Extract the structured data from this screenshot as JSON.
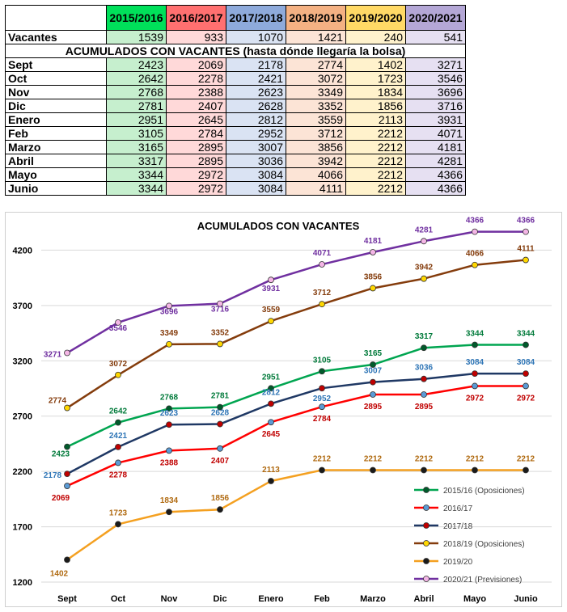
{
  "table": {
    "headers": [
      "2015/2016",
      "2016/2017",
      "2017/2018",
      "2018/2019",
      "2019/2020",
      "2020/2021"
    ],
    "header_colors": [
      "#00e05a",
      "#ff7070",
      "#8eaadb",
      "#f4b183",
      "#ffd966",
      "#b4a7d6"
    ],
    "body_colors": [
      "#c6efce",
      "#ffd9d9",
      "#dae3f3",
      "#fce4d6",
      "#fff2cc",
      "#e6e0f2"
    ],
    "vacantes_label": "Vacantes",
    "vacantes": [
      1539,
      933,
      1070,
      1421,
      240,
      541
    ],
    "subtitle": "ACUMULADOS CON VACANTES (hasta dónde llegaría la bolsa)",
    "rows": [
      {
        "label": "Sept",
        "values": [
          2423,
          2069,
          2178,
          2774,
          1402,
          3271
        ]
      },
      {
        "label": "Oct",
        "values": [
          2642,
          2278,
          2421,
          3072,
          1723,
          3546
        ]
      },
      {
        "label": "Nov",
        "values": [
          2768,
          2388,
          2623,
          3349,
          1834,
          3696
        ]
      },
      {
        "label": "Dic",
        "values": [
          2781,
          2407,
          2628,
          3352,
          1856,
          3716
        ]
      },
      {
        "label": "Enero",
        "values": [
          2951,
          2645,
          2812,
          3559,
          2113,
          3931
        ]
      },
      {
        "label": "Feb",
        "values": [
          3105,
          2784,
          2952,
          3712,
          2212,
          4071
        ]
      },
      {
        "label": "Marzo",
        "values": [
          3165,
          2895,
          3007,
          3856,
          2212,
          4181
        ]
      },
      {
        "label": "Abril",
        "values": [
          3317,
          2895,
          3036,
          3942,
          2212,
          4281
        ]
      },
      {
        "label": "Mayo",
        "values": [
          3344,
          2972,
          3084,
          4066,
          2212,
          4366
        ]
      },
      {
        "label": "Junio",
        "values": [
          3344,
          2972,
          3084,
          4111,
          2212,
          4366
        ]
      }
    ]
  },
  "chart_data": {
    "type": "line",
    "title": "ACUMULADOS CON VACANTES",
    "categories": [
      "Sept",
      "Oct",
      "Nov",
      "Dic",
      "Enero",
      "Feb",
      "Marzo",
      "Abril",
      "Mayo",
      "Junio"
    ],
    "ylim": [
      1200,
      4400
    ],
    "yticks": [
      1200,
      1700,
      2200,
      2700,
      3200,
      3700,
      4200
    ],
    "grid": true,
    "legend_position": "bottom-right",
    "series": [
      {
        "name": "2015/16 (Oposiciones)",
        "color": "#00a550",
        "marker": "#005a2b",
        "label_color": "#007a3a",
        "values": [
          2423,
          2642,
          2768,
          2781,
          2951,
          3105,
          3165,
          3317,
          3344,
          3344
        ]
      },
      {
        "name": "2016/17",
        "color": "#ff0000",
        "marker": "#5b9bd5",
        "label_color": "#c00000",
        "values": [
          2069,
          2278,
          2388,
          2407,
          2645,
          2784,
          2895,
          2895,
          2972,
          2972
        ]
      },
      {
        "name": "2017/18",
        "color": "#1f3864",
        "marker": "#c00000",
        "label_color": "#2e75b6",
        "values": [
          2178,
          2421,
          2623,
          2628,
          2812,
          2952,
          3007,
          3036,
          3084,
          3084
        ]
      },
      {
        "name": "2018/19 (Oposiciones)",
        "color": "#843c0c",
        "marker": "#ffd700",
        "label_color": "#843c0c",
        "values": [
          2774,
          3072,
          3349,
          3352,
          3559,
          3712,
          3856,
          3942,
          4066,
          4111
        ]
      },
      {
        "name": "2019/20",
        "color": "#f4a020",
        "marker": "#1a1a1a",
        "label_color": "#b06a10",
        "values": [
          1402,
          1723,
          1834,
          1856,
          2113,
          2212,
          2212,
          2212,
          2212,
          2212
        ]
      },
      {
        "name": "2020/21 (Previsiones)",
        "color": "#7030a0",
        "marker": "#f4b6e6",
        "label_color": "#7030a0",
        "values": [
          3271,
          3546,
          3696,
          3716,
          3931,
          4071,
          4181,
          4281,
          4366,
          4366
        ]
      }
    ]
  }
}
